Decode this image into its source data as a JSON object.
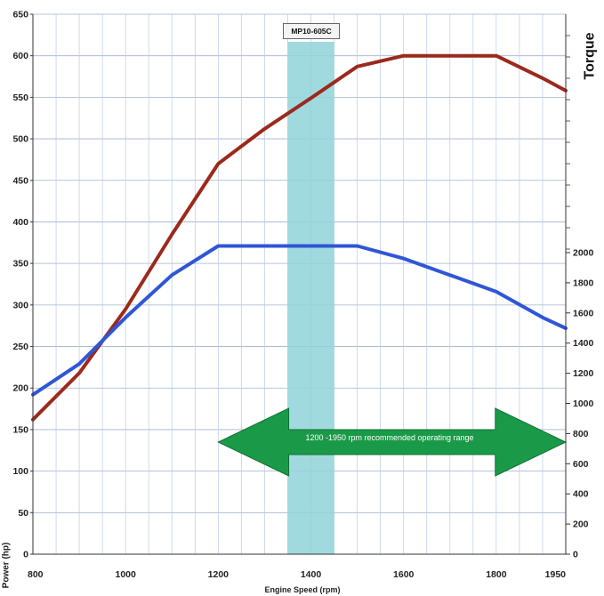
{
  "chart_data": {
    "type": "line",
    "title": "",
    "xlabel": "Engine Speed (rpm)",
    "ylabel_left": "Power (hp)",
    "ylabel_right": "Torque",
    "xlim": [
      800,
      1950
    ],
    "ylim_left": [
      0,
      650
    ],
    "ylim_right": [
      0,
      2000
    ],
    "x_ticks": [
      800,
      1000,
      1200,
      1400,
      1600,
      1800,
      1950
    ],
    "y_left_ticks": [
      0,
      50,
      100,
      150,
      200,
      250,
      300,
      350,
      400,
      450,
      500,
      550,
      600,
      650
    ],
    "y_right_ticks": [
      0,
      200,
      400,
      600,
      800,
      1000,
      1200,
      1400,
      1600,
      1800,
      2000
    ],
    "grid": true,
    "series": [
      {
        "axis": "left",
        "color": "#9b2a1c",
        "x": [
          800,
          900,
          1000,
          1100,
          1200,
          1300,
          1400,
          1500,
          1600,
          1700,
          1800,
          1900,
          1950
        ],
        "y": [
          162,
          218,
          295,
          385,
          470,
          512,
          549,
          587,
          600,
          600,
          600,
          573,
          558
        ]
      },
      {
        "axis": "left",
        "color": "#2f56d6",
        "x": [
          800,
          900,
          1000,
          1100,
          1200,
          1300,
          1400,
          1500,
          1600,
          1700,
          1800,
          1900,
          1950
        ],
        "y": [
          192,
          229,
          285,
          336,
          371,
          371,
          371,
          371,
          356,
          336,
          316,
          285,
          272
        ]
      }
    ],
    "highlight_band": {
      "x_range": [
        1350,
        1450
      ],
      "color": "#8fd3d8",
      "label": "MP10-605C"
    },
    "range_arrow": {
      "x_range": [
        1200,
        1950
      ],
      "label": "1200 -1950 rpm recommended operating range",
      "color": "#1a9a48"
    }
  }
}
